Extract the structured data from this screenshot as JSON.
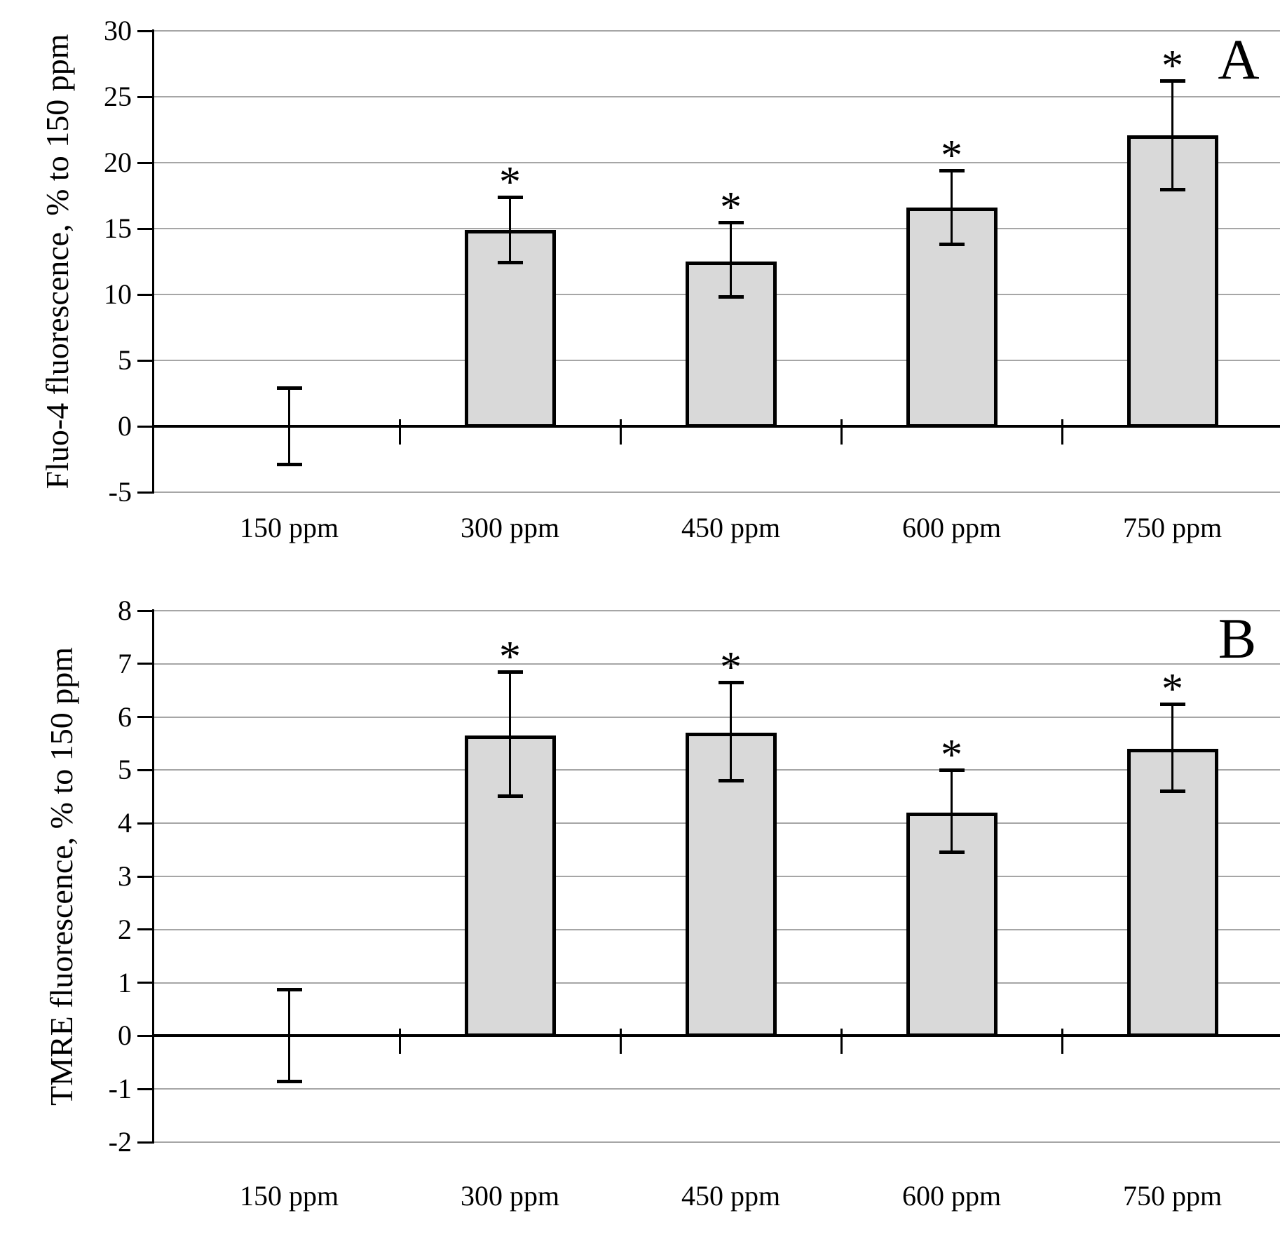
{
  "figure_colors": {
    "background": "#ffffff",
    "bar_fill": "#d9d9d9",
    "bar_border": "#000000",
    "gridline": "#a6a6a6",
    "axis_and_zero_line": "#000000",
    "text": "#000000"
  },
  "chart_data": [
    {
      "type": "bar",
      "panel_label": "A",
      "title": "",
      "xlabel": "",
      "ylabel": "Fluo-4 fluorescence, % to 150 ppm",
      "categories": [
        "150 ppm",
        "300 ppm",
        "450 ppm",
        "600 ppm",
        "750 ppm"
      ],
      "values": [
        0,
        14.9,
        12.5,
        16.6,
        22.1
      ],
      "error_plus": [
        2.9,
        2.5,
        3.0,
        2.8,
        4.1
      ],
      "error_minus": [
        2.9,
        2.5,
        2.7,
        2.8,
        4.2
      ],
      "significance": [
        "",
        "*",
        "*",
        "*",
        "*"
      ],
      "ylim": [
        -5,
        30
      ],
      "yticks": [
        30,
        25,
        20,
        15,
        10,
        5,
        0,
        -5
      ],
      "grid": true,
      "legend": "none"
    },
    {
      "type": "bar",
      "panel_label": "B",
      "title": "",
      "xlabel": "",
      "ylabel": "TMRE fluorescence, % to 150 ppm",
      "categories": [
        "150 ppm",
        "300 ppm",
        "450 ppm",
        "600 ppm",
        "750 ppm"
      ],
      "values": [
        0,
        5.65,
        5.7,
        4.2,
        5.4
      ],
      "error_plus": [
        0.87,
        1.2,
        0.95,
        0.8,
        0.85
      ],
      "error_minus": [
        0.87,
        1.15,
        0.9,
        0.75,
        0.8
      ],
      "significance": [
        "",
        "*",
        "*",
        "*",
        "*"
      ],
      "ylim": [
        -2,
        8
      ],
      "yticks": [
        8,
        7,
        6,
        5,
        4,
        3,
        2,
        1,
        0,
        -1,
        -2
      ],
      "grid": true,
      "legend": "none"
    }
  ]
}
